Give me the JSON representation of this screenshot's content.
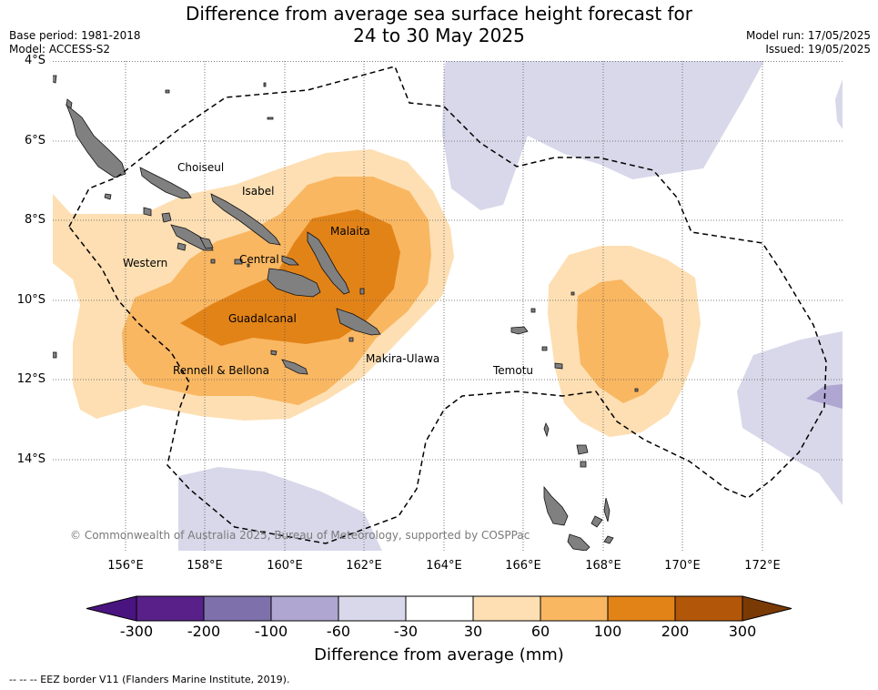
{
  "title": {
    "line1": "Difference from average sea surface height forecast for",
    "line2": "24 to 30 May 2025"
  },
  "meta": {
    "base_period": "Base period: 1981-2018",
    "model": "Model: ACCESS-S2",
    "model_run": "Model run: 17/05/2025",
    "issued": "Issued: 19/05/2025"
  },
  "map": {
    "latitude_labels": [
      "4°S",
      "6°S",
      "8°S",
      "10°S",
      "12°S",
      "14°S"
    ],
    "longitude_labels": [
      "156°E",
      "158°E",
      "160°E",
      "162°E",
      "164°E",
      "166°E",
      "168°E",
      "170°E",
      "172°E"
    ],
    "place_labels": [
      "Choiseul",
      "Isabel",
      "Malaita",
      "Western",
      "Central",
      "Guadalcanal",
      "Makira-Ulawa",
      "Temotu",
      "Rennell & Bellona"
    ],
    "copyright": "© Commonwealth of Australia 2025, Bureau of Meteorology, supported by COSPPac",
    "colors": {
      "land": "#808080",
      "pos_30_60": "#fddfb3",
      "pos_60_100": "#f9b762",
      "pos_100_200": "#e28318",
      "neg_30_60": "#d8d8ea",
      "neg_60_100": "#afa7d1",
      "eez_border": "#000000"
    }
  },
  "colorbar": {
    "label": "Difference from average (mm)",
    "ticks": [
      "-300",
      "-200",
      "-100",
      "-60",
      "-30",
      "30",
      "60",
      "100",
      "200",
      "300"
    ],
    "colors": [
      "#4a1480",
      "#582088",
      "#7e71ab",
      "#afa7d1",
      "#d8d8ea",
      "#ffffff",
      "#fddfb3",
      "#f9b762",
      "#e28318",
      "#b2570a",
      "#7a3a06"
    ]
  },
  "footnote": "--  --  -- EEZ border V11 (Flanders Marine Institute, 2019)."
}
